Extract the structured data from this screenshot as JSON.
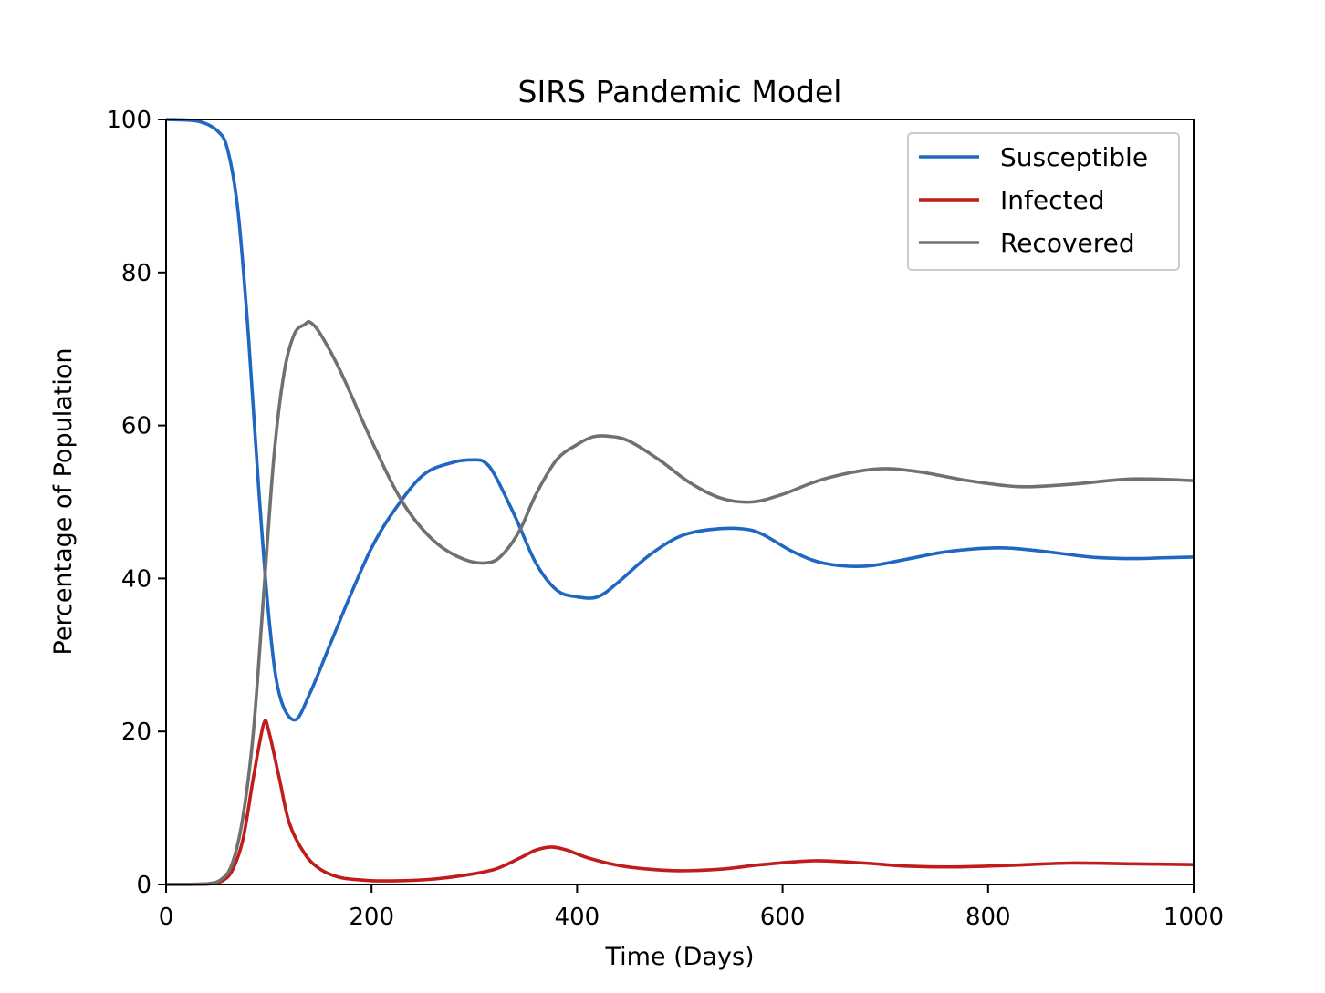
{
  "chart_data": {
    "type": "line",
    "title": "SIRS Pandemic Model",
    "xlabel": "Time (Days)",
    "ylabel": "Percentage of Population",
    "xlim": [
      0,
      1000
    ],
    "ylim": [
      0,
      100
    ],
    "xticks": [
      0,
      200,
      400,
      600,
      800,
      1000
    ],
    "yticks": [
      0,
      20,
      40,
      60,
      80,
      100
    ],
    "xtick_labels": [
      "0",
      "200",
      "400",
      "600",
      "800",
      "1000"
    ],
    "ytick_labels": [
      "0",
      "20",
      "40",
      "60",
      "80",
      "100"
    ],
    "grid": false,
    "legend_position": "top-right",
    "series": [
      {
        "name": "Susceptible",
        "color": "#1f67c2",
        "x": [
          0,
          30,
          50,
          60,
          70,
          80,
          90,
          100,
          110,
          125,
          140,
          160,
          180,
          200,
          220,
          250,
          280,
          300,
          310,
          320,
          340,
          360,
          380,
          400,
          420,
          440,
          470,
          500,
          530,
          560,
          580,
          610,
          640,
          680,
          720,
          760,
          810,
          850,
          900,
          940,
          970,
          1000
        ],
        "y": [
          100,
          99.8,
          98.5,
          96,
          88,
          72,
          52,
          35,
          25,
          21.5,
          25,
          31.5,
          38,
          44,
          48.5,
          53.5,
          55.2,
          55.5,
          55.2,
          53.5,
          48,
          42,
          38.5,
          37.6,
          37.6,
          39.5,
          43,
          45.5,
          46.4,
          46.5,
          45.8,
          43.5,
          42,
          41.6,
          42.5,
          43.5,
          44,
          43.6,
          42.8,
          42.6,
          42.7,
          42.8
        ]
      },
      {
        "name": "Infected",
        "color": "#c01c1c",
        "x": [
          0,
          40,
          55,
          65,
          75,
          85,
          95,
          100,
          110,
          120,
          135,
          150,
          170,
          200,
          230,
          260,
          290,
          320,
          345,
          360,
          375,
          390,
          410,
          440,
          470,
          500,
          540,
          580,
          630,
          680,
          720,
          770,
          820,
          880,
          940,
          1000
        ],
        "y": [
          0,
          0.05,
          0.5,
          2,
          6,
          14,
          21,
          20,
          14,
          8,
          4,
          2,
          0.9,
          0.5,
          0.5,
          0.7,
          1.2,
          2,
          3.5,
          4.5,
          4.9,
          4.5,
          3.5,
          2.5,
          2,
          1.8,
          2,
          2.6,
          3.1,
          2.8,
          2.4,
          2.3,
          2.5,
          2.8,
          2.7,
          2.6
        ]
      },
      {
        "name": "Recovered",
        "color": "#707070",
        "x": [
          0,
          40,
          55,
          65,
          75,
          85,
          95,
          105,
          115,
          125,
          135,
          140,
          150,
          170,
          200,
          230,
          260,
          290,
          315,
          330,
          345,
          360,
          380,
          400,
          415,
          430,
          450,
          480,
          510,
          540,
          570,
          600,
          640,
          690,
          730,
          780,
          830,
          880,
          940,
          1000
        ],
        "y": [
          0,
          0.1,
          0.8,
          3,
          9,
          20,
          38,
          56,
          67,
          72,
          73.2,
          73.5,
          72,
          67,
          58,
          50,
          45,
          42.5,
          42.1,
          43.5,
          46.5,
          51,
          55.5,
          57.5,
          58.5,
          58.6,
          58,
          55.5,
          52.5,
          50.5,
          50,
          51,
          53,
          54.3,
          54,
          52.8,
          52,
          52.3,
          53,
          52.8
        ]
      }
    ]
  }
}
